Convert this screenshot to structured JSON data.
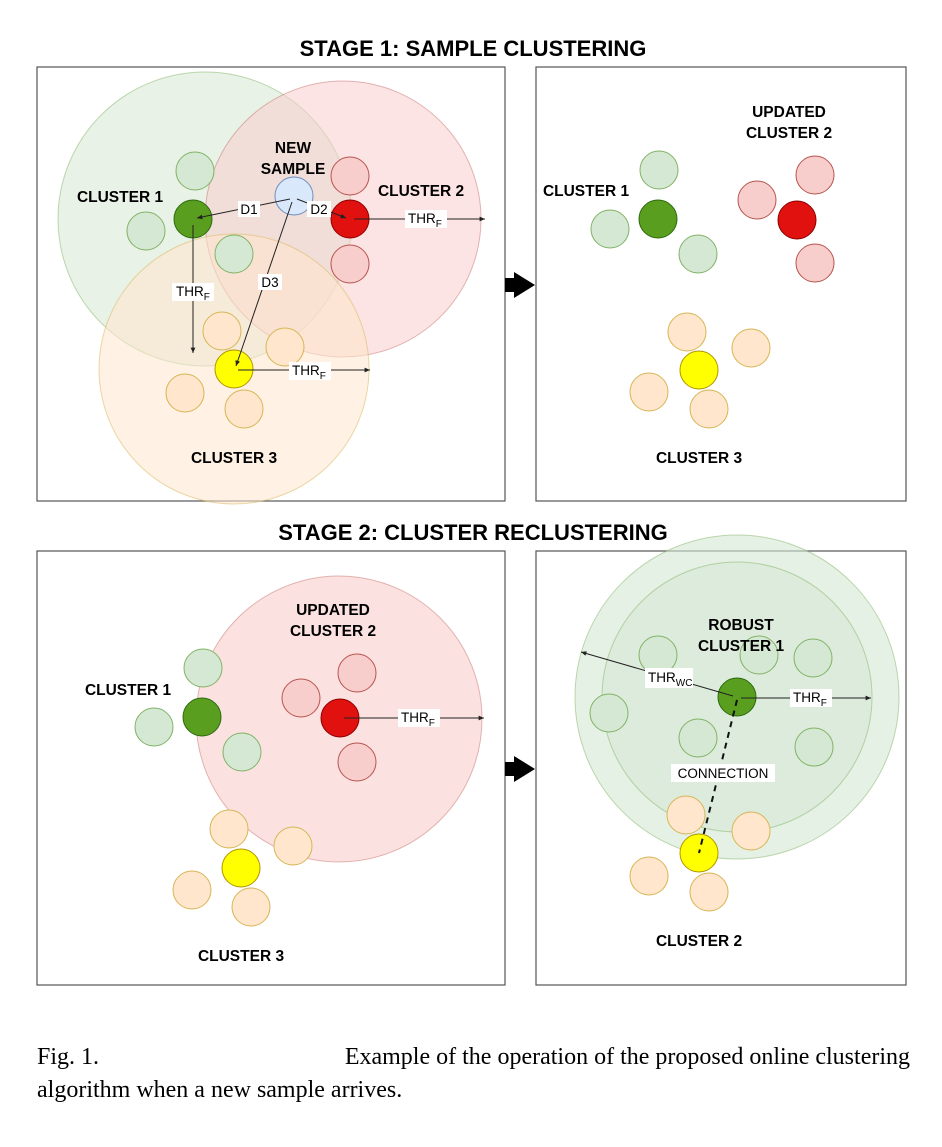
{
  "stage1": {
    "title": "STAGE 1: SAMPLE CLUSTERING",
    "left": {
      "cluster1": "CLUSTER 1",
      "cluster2": "CLUSTER 2",
      "cluster3": "CLUSTER 3",
      "new_sample_line1": "NEW",
      "new_sample_line2": "SAMPLE",
      "d1": "D1",
      "d2": "D2",
      "d3": "D3",
      "thr": "THR",
      "thr_sub": "F"
    },
    "right": {
      "cluster1": "CLUSTER 1",
      "updated_line1": "UPDATED",
      "updated_line2": "CLUSTER 2",
      "cluster3": "CLUSTER 3"
    }
  },
  "stage2": {
    "title": "STAGE 2: CLUSTER RECLUSTERING",
    "left": {
      "cluster1": "CLUSTER 1",
      "updated_line1": "UPDATED",
      "updated_line2": "CLUSTER 2",
      "cluster3": "CLUSTER 3",
      "thr": "THR",
      "thr_sub": "F"
    },
    "right": {
      "robust_line1": "ROBUST",
      "robust_line2": "CLUSTER 1",
      "thr_wc": "THR",
      "thr_wc_sub": "WC",
      "thr_f": "THR",
      "thr_f_sub": "F",
      "connection": "CONNECTION",
      "cluster2": "CLUSTER 2"
    }
  },
  "caption": {
    "line1_left": "Fig. 1.",
    "line1_right": "Example of the operation of the proposed online clustering",
    "line2": "algorithm when a new sample arrives."
  },
  "colors": {
    "green_dark": "#5a9e1f",
    "green_light": "#d5e8d4",
    "red_dark": "#e0110f",
    "red_light": "#f8cecc",
    "yellow_dark": "#ffff00",
    "yellow_light": "#ffe6cc",
    "blue_sample": "#dae8fc"
  }
}
